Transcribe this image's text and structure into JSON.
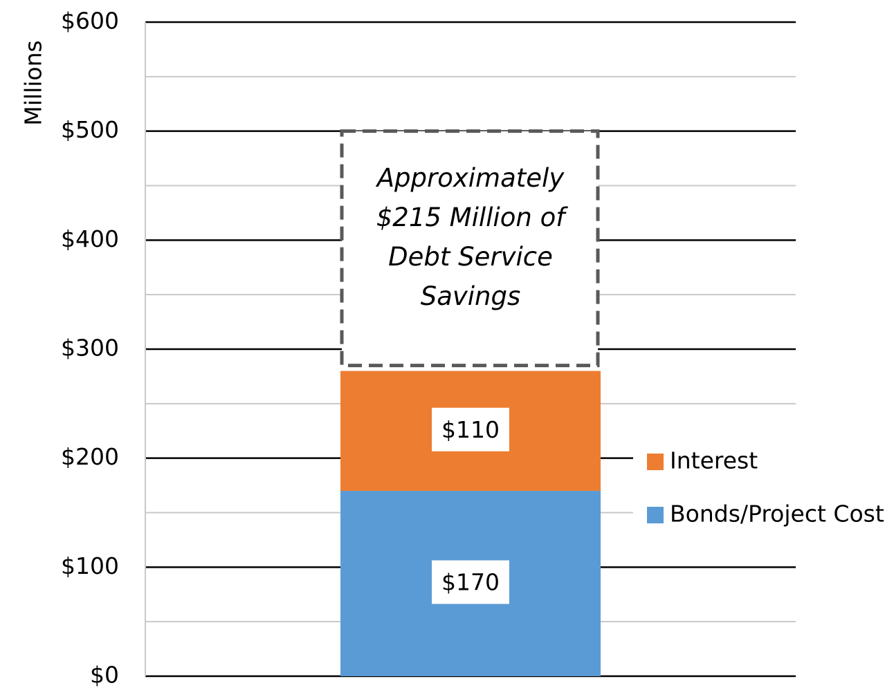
{
  "chart_data": {
    "type": "stacked_bar",
    "y_label": "Millions",
    "categories": [
      null
    ],
    "series": [
      {
        "name": "Bonds/Project Cost",
        "color": "#5b9bd5",
        "values": [
          170
        ],
        "value_labels": [
          "$170"
        ]
      },
      {
        "name": "Interest",
        "color": "#ed7d31",
        "values": [
          110
        ],
        "value_labels": [
          "$110"
        ]
      }
    ],
    "ylim": [
      0,
      600
    ],
    "yticks": [
      {
        "value": 0,
        "label": "$0"
      },
      {
        "value": 100,
        "label": "$100"
      },
      {
        "value": 200,
        "label": "$200"
      },
      {
        "value": 300,
        "label": "$300"
      },
      {
        "value": 400,
        "label": "$400"
      },
      {
        "value": 500,
        "label": "$500"
      },
      {
        "value": 600,
        "label": "$600"
      }
    ],
    "minor_yticks": [
      50,
      150,
      250,
      350,
      450,
      550
    ],
    "grid": true,
    "legend": "right",
    "annotation": {
      "lines": [
        "Approximately",
        "$215 Million of",
        "Debt Service",
        "Savings"
      ],
      "range": [
        285,
        500
      ]
    }
  }
}
